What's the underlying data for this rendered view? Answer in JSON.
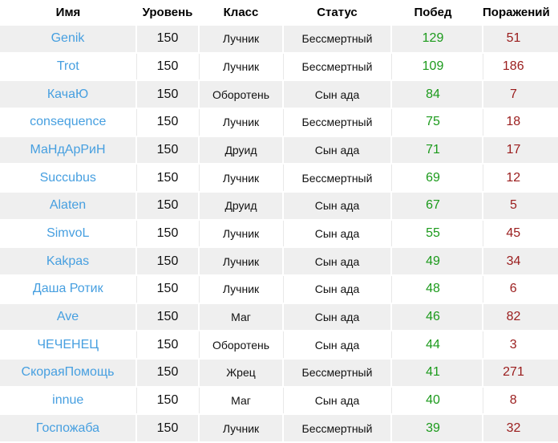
{
  "table": {
    "columns": [
      {
        "key": "name",
        "label": "Имя"
      },
      {
        "key": "level",
        "label": "Уровень"
      },
      {
        "key": "class",
        "label": "Класс"
      },
      {
        "key": "status",
        "label": "Статус"
      },
      {
        "key": "wins",
        "label": "Побед"
      },
      {
        "key": "losses",
        "label": "Поражений"
      }
    ],
    "rows": [
      {
        "name": "Genik",
        "level": "150",
        "class": "Лучник",
        "status": "Бессмертный",
        "wins": "129",
        "losses": "51"
      },
      {
        "name": "Trot",
        "level": "150",
        "class": "Лучник",
        "status": "Бессмертный",
        "wins": "109",
        "losses": "186"
      },
      {
        "name": "КачаЮ",
        "level": "150",
        "class": "Оборотень",
        "status": "Сын ада",
        "wins": "84",
        "losses": "7"
      },
      {
        "name": "consequence",
        "level": "150",
        "class": "Лучник",
        "status": "Бессмертный",
        "wins": "75",
        "losses": "18"
      },
      {
        "name": "МаНдАрРиН",
        "level": "150",
        "class": "Друид",
        "status": "Сын ада",
        "wins": "71",
        "losses": "17"
      },
      {
        "name": "Succubus",
        "level": "150",
        "class": "Лучник",
        "status": "Бессмертный",
        "wins": "69",
        "losses": "12"
      },
      {
        "name": "Alaten",
        "level": "150",
        "class": "Друид",
        "status": "Сын ада",
        "wins": "67",
        "losses": "5"
      },
      {
        "name": "SimvoL",
        "level": "150",
        "class": "Лучник",
        "status": "Сын ада",
        "wins": "55",
        "losses": "45"
      },
      {
        "name": "Kakpas",
        "level": "150",
        "class": "Лучник",
        "status": "Сын ада",
        "wins": "49",
        "losses": "34"
      },
      {
        "name": "Даша Ротик",
        "level": "150",
        "class": "Лучник",
        "status": "Сын ада",
        "wins": "48",
        "losses": "6"
      },
      {
        "name": "Ave",
        "level": "150",
        "class": "Маг",
        "status": "Сын ада",
        "wins": "46",
        "losses": "82"
      },
      {
        "name": "ЧЕЧЕНЕЦ",
        "level": "150",
        "class": "Оборотень",
        "status": "Сын ада",
        "wins": "44",
        "losses": "3"
      },
      {
        "name": "СкораяПомощь",
        "level": "150",
        "class": "Жрец",
        "status": "Бессмертный",
        "wins": "41",
        "losses": "271"
      },
      {
        "name": "innue",
        "level": "150",
        "class": "Маг",
        "status": "Сын ада",
        "wins": "40",
        "losses": "8"
      },
      {
        "name": "Госпожаба",
        "level": "150",
        "class": "Лучник",
        "status": "Бессмертный",
        "wins": "39",
        "losses": "32"
      }
    ]
  },
  "colors": {
    "name_link": "#469fe0",
    "wins": "#1b9a1b",
    "losses": "#9a1c1c",
    "row_alt_bg": "#efefef",
    "grid_line": "#e8e8e8",
    "text": "#111111"
  }
}
